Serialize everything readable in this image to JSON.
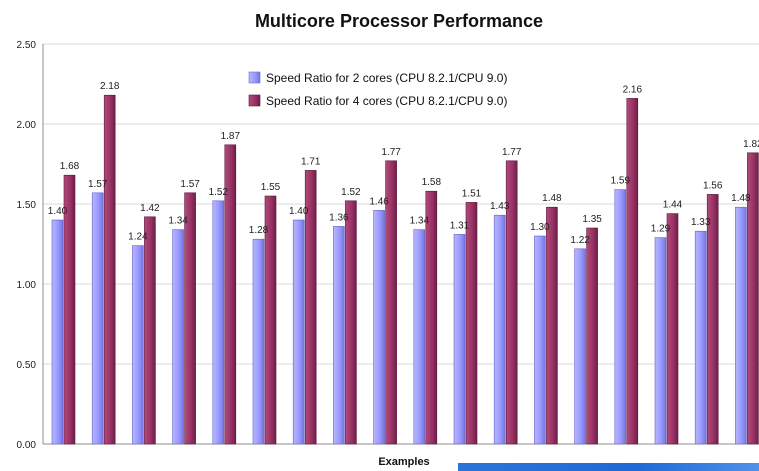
{
  "chart_data": {
    "type": "bar",
    "title": "Multicore Processor Performance",
    "xlabel": "Examples",
    "ylabel": "",
    "ylim": [
      0,
      2.5
    ],
    "y_ticks": [
      "0.00",
      "0.50",
      "1.00",
      "1.50",
      "2.00",
      "2.50"
    ],
    "grid": true,
    "legend": {
      "placement": "top-center"
    },
    "series": [
      {
        "name": "Speed Ratio for 2 cores (CPU 8.2.1/CPU 9.0)",
        "color": "#9999ff",
        "values": [
          1.4,
          1.57,
          1.24,
          1.34,
          1.52,
          1.28,
          1.4,
          1.36,
          1.46,
          1.34,
          1.31,
          1.43,
          1.3,
          1.22,
          1.59,
          1.29,
          1.33,
          1.48
        ],
        "labels": [
          "1.40",
          "1.57",
          "1.24",
          "1.34",
          "1.52",
          "1.28",
          "1.40",
          "1.36",
          "1.46",
          "1.34",
          "1.31",
          "1.43",
          "1.30",
          "1.22",
          "1.59",
          "1.29",
          "1.33",
          "1.48"
        ]
      },
      {
        "name": "Speed Ratio for 4 cores (CPU 8.2.1/CPU 9.0)",
        "color": "#993366",
        "values": [
          1.68,
          2.18,
          1.42,
          1.57,
          1.87,
          1.55,
          1.71,
          1.52,
          1.77,
          1.58,
          1.51,
          1.77,
          1.48,
          1.35,
          2.16,
          1.44,
          1.56,
          1.82
        ],
        "labels": [
          "1.68",
          "2.18",
          "1.42",
          "1.57",
          "1.87",
          "1.55",
          "1.71",
          "1.52",
          "1.77",
          "1.58",
          "1.51",
          "1.77",
          "1.48",
          "1.35",
          "2.16",
          "1.44",
          "1.56",
          "1.82"
        ]
      }
    ]
  },
  "colors": {
    "grid": "#d8d8d8",
    "axis": "#8f8f8f",
    "series_2_cores": "#9999ff",
    "series_4_cores": "#993366"
  }
}
